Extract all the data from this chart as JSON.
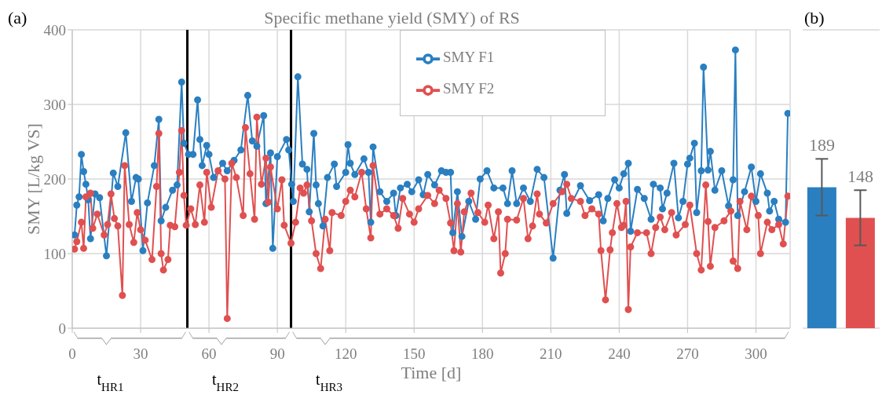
{
  "chart_data": [
    {
      "type": "line",
      "title": "Specific methane yield (SMY) of RS",
      "xlabel": "Time [d]",
      "ylabel": "SMY [L/kg VS]",
      "xlim": [
        0,
        315
      ],
      "xticks": [
        0,
        30,
        60,
        90,
        120,
        150,
        180,
        210,
        240,
        270,
        300
      ],
      "ylim": [
        0,
        400
      ],
      "yticks": [
        0,
        100,
        200,
        300,
        400
      ],
      "grid": true,
      "legend": "top",
      "marker": "circle",
      "line_style": "solid",
      "ref_lines": [
        {
          "axis": "x",
          "value": 50.5,
          "color": "#000000"
        },
        {
          "axis": "x",
          "value": 96,
          "color": "#000000"
        }
      ],
      "annotations": [
        "(a)",
        "t$_{HR1}$",
        "t$_{HR2}$",
        "t$_{HR3}$"
      ],
      "series": [
        {
          "name": "SMY F1",
          "color": "#2a7fc1",
          "x": [
            1,
            2,
            3,
            4,
            5,
            6,
            7,
            8,
            10,
            12,
            15,
            18,
            20,
            23.5,
            26,
            28,
            29,
            31,
            33,
            36,
            38,
            39,
            41,
            44,
            46,
            48,
            49,
            51,
            53,
            55,
            56,
            57,
            59,
            60,
            62,
            66,
            68,
            71,
            74,
            77,
            79,
            81,
            84,
            85,
            87,
            88,
            90,
            94,
            95,
            96.3,
            97,
            99,
            101,
            103,
            104,
            106,
            107,
            108,
            110,
            112,
            115,
            116,
            120,
            121,
            122,
            124,
            128,
            130,
            131,
            132,
            135,
            138,
            141,
            142,
            144,
            147,
            149,
            152,
            154,
            156,
            159,
            162,
            164,
            166,
            167,
            169,
            171,
            174,
            177,
            179,
            182,
            185,
            189,
            191,
            193,
            195,
            198,
            201,
            204,
            207,
            211,
            214,
            216,
            217,
            223,
            227,
            231,
            233,
            235,
            238,
            240,
            242,
            244,
            245,
            248,
            251,
            254,
            255,
            258,
            259,
            261,
            264,
            266,
            268,
            270,
            271,
            273,
            274,
            276,
            277,
            279,
            280,
            282,
            285,
            288,
            290,
            291,
            292,
            295,
            298,
            300,
            302,
            305,
            306,
            308,
            310,
            313,
            314
          ],
          "values": [
            125,
            165,
            176,
            233,
            210,
            193,
            172,
            120,
            180,
            175,
            97,
            208,
            190,
            262,
            170,
            202,
            200,
            104,
            168,
            218,
            280,
            144,
            162,
            185,
            192,
            330,
            248,
            233,
            233,
            306,
            253,
            218,
            245,
            233,
            202,
            221,
            211,
            225,
            239,
            312,
            251,
            244,
            285,
            167,
            235,
            107,
            230,
            253,
            239,
            193,
            170,
            337,
            220,
            213,
            156,
            261,
            192,
            167,
            137,
            202,
            220,
            190,
            209,
            246,
            221,
            206,
            227,
            209,
            142,
            243,
            183,
            170,
            181,
            151,
            188,
            193,
            183,
            199,
            179,
            206,
            192,
            211,
            209,
            209,
            128,
            183,
            123,
            170,
            146,
            200,
            211,
            188,
            188,
            167,
            211,
            167,
            188,
            170,
            213,
            202,
            94,
            185,
            206,
            154,
            191,
            171,
            179,
            144,
            174,
            199,
            188,
            207,
            221,
            130,
            186,
            174,
            146,
            193,
            188,
            160,
            181,
            221,
            148,
            170,
            220,
            228,
            248,
            155,
            211,
            350,
            212,
            237,
            185,
            211,
            164,
            199,
            373,
            151,
            183,
            216,
            170,
            207,
            181,
            157,
            170,
            146,
            142,
            288
          ]
        },
        {
          "name": "SMY F2",
          "color": "#e05050",
          "x": [
            1,
            2,
            4,
            5,
            6,
            8,
            9,
            11,
            14,
            15.5,
            17,
            18.5,
            20,
            22,
            23,
            25,
            27,
            28.5,
            30,
            32,
            35,
            37,
            38,
            39,
            40,
            42,
            43,
            45,
            47,
            48,
            49,
            50,
            52,
            54,
            56,
            58,
            59,
            61,
            64,
            67,
            68,
            70,
            72,
            75,
            76,
            78,
            80,
            81,
            83,
            85,
            86,
            87,
            90,
            92,
            93,
            96,
            98,
            100,
            101.5,
            103,
            105,
            107,
            109,
            111,
            113,
            114,
            118,
            120,
            122,
            124,
            127,
            129,
            131,
            132,
            135,
            138,
            141,
            143,
            145,
            148,
            150,
            152,
            156,
            159,
            161,
            164,
            166,
            167.5,
            169,
            170.5,
            172,
            175,
            178,
            181,
            182.5,
            185,
            187,
            188,
            190,
            191,
            195,
            198,
            200,
            202,
            204,
            205,
            208,
            211,
            215,
            217,
            219,
            223,
            225,
            228,
            231,
            232,
            234,
            236,
            237,
            239,
            241,
            242,
            243,
            244,
            245,
            248,
            252,
            254,
            256,
            258,
            260,
            263,
            265,
            269,
            271,
            274,
            276,
            278,
            279,
            280,
            282,
            286,
            289,
            290,
            292,
            293,
            296,
            298,
            301,
            302,
            305,
            307,
            310,
            312,
            314
          ],
          "values": [
            106,
            116,
            142,
            107,
            176,
            181,
            134,
            153,
            125,
            139,
            180,
            147,
            137,
            44,
            218,
            139,
            115,
            155,
            132,
            118,
            92,
            190,
            261,
            100,
            78,
            92,
            138,
            136,
            209,
            265,
            178,
            138,
            160,
            139,
            192,
            142,
            209,
            162,
            211,
            200,
            13,
            221,
            202,
            151,
            269,
            207,
            146,
            283,
            193,
            228,
            169,
            216,
            160,
            199,
            138,
            114,
            142,
            188,
            181,
            192,
            144,
            100,
            80,
            146,
            104,
            155,
            151,
            170,
            185,
            176,
            209,
            160,
            121,
            218,
            153,
            160,
            151,
            134,
            174,
            153,
            142,
            160,
            178,
            167,
            185,
            174,
            141,
            104,
            167,
            102,
            156,
            181,
            155,
            142,
            165,
            120,
            156,
            74,
            100,
            146,
            145,
            174,
            120,
            137,
            180,
            153,
            141,
            167,
            183,
            193,
            174,
            170,
            151,
            160,
            153,
            104,
            38,
            105,
            128,
            167,
            135,
            138,
            170,
            25,
            109,
            128,
            128,
            100,
            135,
            149,
            132,
            155,
            125,
            139,
            165,
            100,
            78,
            192,
            143,
            83,
            135,
            144,
            157,
            90,
            80,
            170,
            132,
            177,
            151,
            100,
            142,
            132,
            139,
            113,
            177
          ]
        }
      ]
    },
    {
      "type": "bar",
      "categories": [
        null,
        null
      ],
      "values": [
        189,
        148
      ],
      "colors": [
        "#2a7fc1",
        "#e05050"
      ],
      "errors": [
        38,
        37
      ],
      "data_labels": true,
      "ylim": [
        0,
        400
      ],
      "yticks": [
        0,
        100,
        200,
        300,
        400
      ],
      "grid": "y",
      "tick_labels": false,
      "annotations": [
        "(b)"
      ]
    }
  ]
}
